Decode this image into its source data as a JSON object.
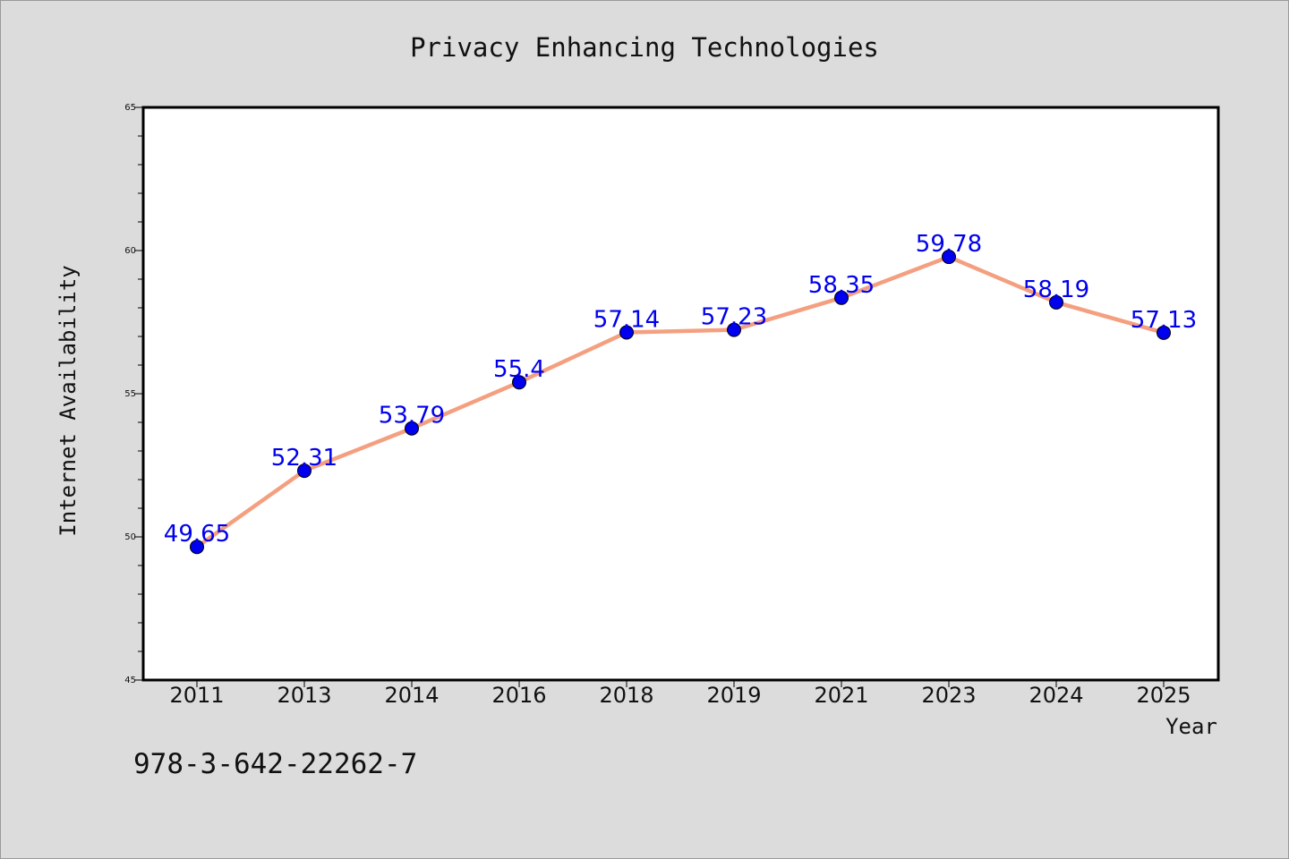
{
  "chart_data": {
    "type": "line",
    "title": "Privacy Enhancing Technologies",
    "xlabel": "Year",
    "ylabel": "Internet Availability",
    "categories": [
      "2011",
      "2013",
      "2014",
      "2016",
      "2018",
      "2019",
      "2021",
      "2023",
      "2024",
      "2025"
    ],
    "series": [
      {
        "values": [
          49.65,
          52.31,
          53.79,
          55.4,
          57.14,
          57.23,
          58.35,
          59.78,
          58.19,
          57.13
        ]
      }
    ],
    "data_labels": [
      "49.65",
      "52.31",
      "53.79",
      "55.4",
      "57.14",
      "57.23",
      "58.35",
      "59.78",
      "58.19",
      "57.13"
    ],
    "ylim": [
      45,
      65
    ],
    "yticks": [
      45,
      50,
      55,
      60,
      65
    ],
    "grid": false,
    "legend": "none",
    "colors": {
      "line": "#f4a080",
      "marker": "#0000ee",
      "label": "#0000ee",
      "background": "#dcdcdc",
      "plot_bg": "#ffffff"
    }
  },
  "footer_text": "978-3-642-22262-7"
}
